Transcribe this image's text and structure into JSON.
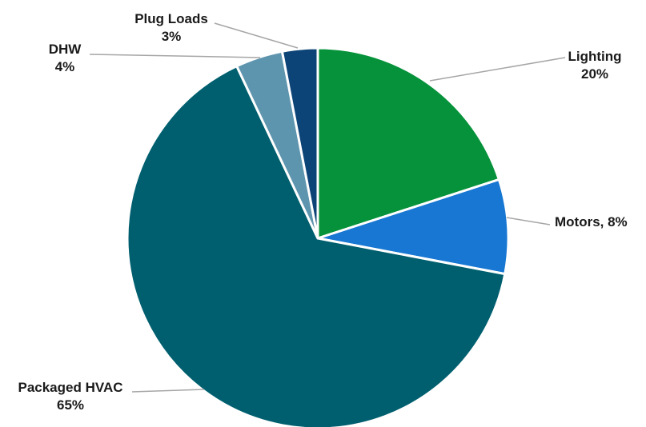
{
  "chart_data": {
    "type": "pie",
    "title": "",
    "slices": [
      {
        "label": "Lighting",
        "value_text": "20%",
        "value": 20,
        "color": "#05923a"
      },
      {
        "label": "Motors, 8%",
        "value_text": "",
        "value": 8,
        "color": "#1777d2"
      },
      {
        "label": "Packaged HVAC",
        "value_text": "65%",
        "value": 65,
        "color": "#005f6f"
      },
      {
        "label": "DHW",
        "value_text": "4%",
        "value": 4,
        "color": "#5e95ae"
      },
      {
        "label": "Plug Loads",
        "value_text": "3%",
        "value": 3,
        "color": "#0d4477"
      }
    ],
    "start": "12 o'clock",
    "direction": "clockwise",
    "legend": "none"
  }
}
